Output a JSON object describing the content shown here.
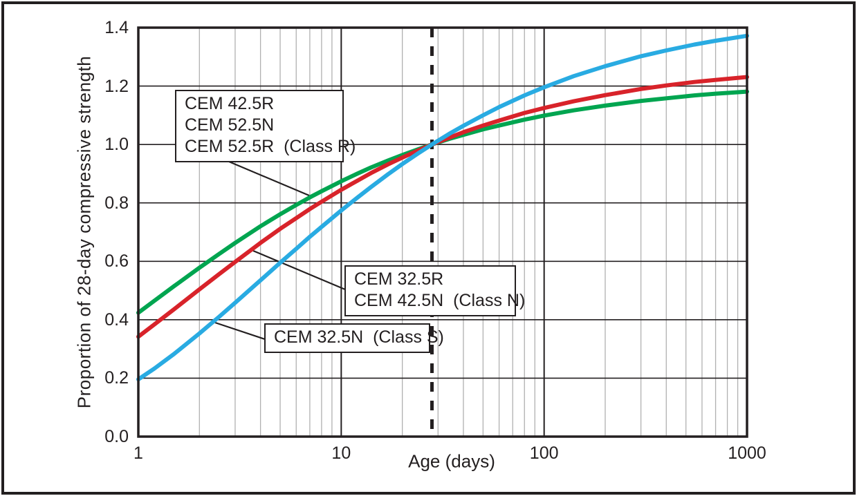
{
  "figure": {
    "x_axis_title": "Age (days)",
    "y_axis_title": "Proportion of 28-day compressive strength"
  },
  "annotations": [
    {
      "lines": [
        "CEM 42.5R",
        "CEM 52.5N",
        "CEM 52.5R  (Class R)"
      ]
    },
    {
      "lines": [
        "CEM 32.5R",
        "CEM 42.5N  (Class N)"
      ]
    },
    {
      "lines": [
        "CEM 32.5N  (Class S)"
      ]
    }
  ],
  "colors": {
    "class_r_green": "#00A550",
    "class_n_red": "#D8232A",
    "class_s_blue": "#29ABE2",
    "line_black": "#231f20",
    "minor_grid_gray": "#b0b0b0"
  },
  "chart_data": {
    "type": "line",
    "title": "",
    "xlabel": "Age (days)",
    "ylabel": "Proportion of 28-day compressive strength",
    "x_scale": "log",
    "xlim": [
      1,
      1000
    ],
    "ylim": [
      0,
      1.4
    ],
    "x_tick_labels": [
      "1",
      "10",
      "100",
      "1000"
    ],
    "y_tick_labels": [
      "0.0",
      "0.2",
      "0.4",
      "0.6",
      "0.8",
      "1.0",
      "1.2",
      "1.4"
    ],
    "grid": "on",
    "reference_line": {
      "x": 28,
      "style": "dashed",
      "color": "#231f20",
      "note": "all curves cross 1.0 at 28 days"
    },
    "x": [
      1,
      1.2,
      1.5,
      2,
      2.5,
      3,
      4,
      5,
      6,
      7,
      8,
      10,
      12,
      14,
      17,
      20,
      24,
      28,
      34,
      40,
      50,
      60,
      80,
      100,
      140,
      200,
      300,
      400,
      550,
      700,
      1000
    ],
    "series": [
      {
        "name": "CEM 42.5R / CEM 52.5N / CEM 52.5R (Class R)",
        "color": "#00A550",
        "values": [
          0.424,
          0.465,
          0.515,
          0.578,
          0.625,
          0.663,
          0.72,
          0.761,
          0.793,
          0.819,
          0.84,
          0.874,
          0.9,
          0.921,
          0.945,
          0.964,
          0.984,
          1.0,
          1.019,
          1.033,
          1.052,
          1.065,
          1.085,
          1.099,
          1.117,
          1.133,
          1.149,
          1.158,
          1.168,
          1.174,
          1.181
        ]
      },
      {
        "name": "CEM 32.5R / CEM 42.5N (Class N)",
        "color": "#D8232A",
        "values": [
          0.342,
          0.384,
          0.436,
          0.504,
          0.556,
          0.598,
          0.663,
          0.711,
          0.748,
          0.779,
          0.804,
          0.845,
          0.876,
          0.902,
          0.932,
          0.955,
          0.98,
          1.0,
          1.023,
          1.042,
          1.065,
          1.082,
          1.108,
          1.125,
          1.148,
          1.169,
          1.19,
          1.202,
          1.214,
          1.221,
          1.231
        ]
      },
      {
        "name": "CEM 32.5N (Class S)",
        "color": "#29ABE2",
        "values": [
          0.196,
          0.233,
          0.283,
          0.353,
          0.41,
          0.458,
          0.535,
          0.595,
          0.643,
          0.684,
          0.718,
          0.774,
          0.818,
          0.854,
          0.898,
          0.933,
          0.97,
          1.0,
          1.036,
          1.064,
          1.1,
          1.128,
          1.168,
          1.196,
          1.234,
          1.268,
          1.302,
          1.322,
          1.342,
          1.355,
          1.372
        ]
      }
    ]
  }
}
